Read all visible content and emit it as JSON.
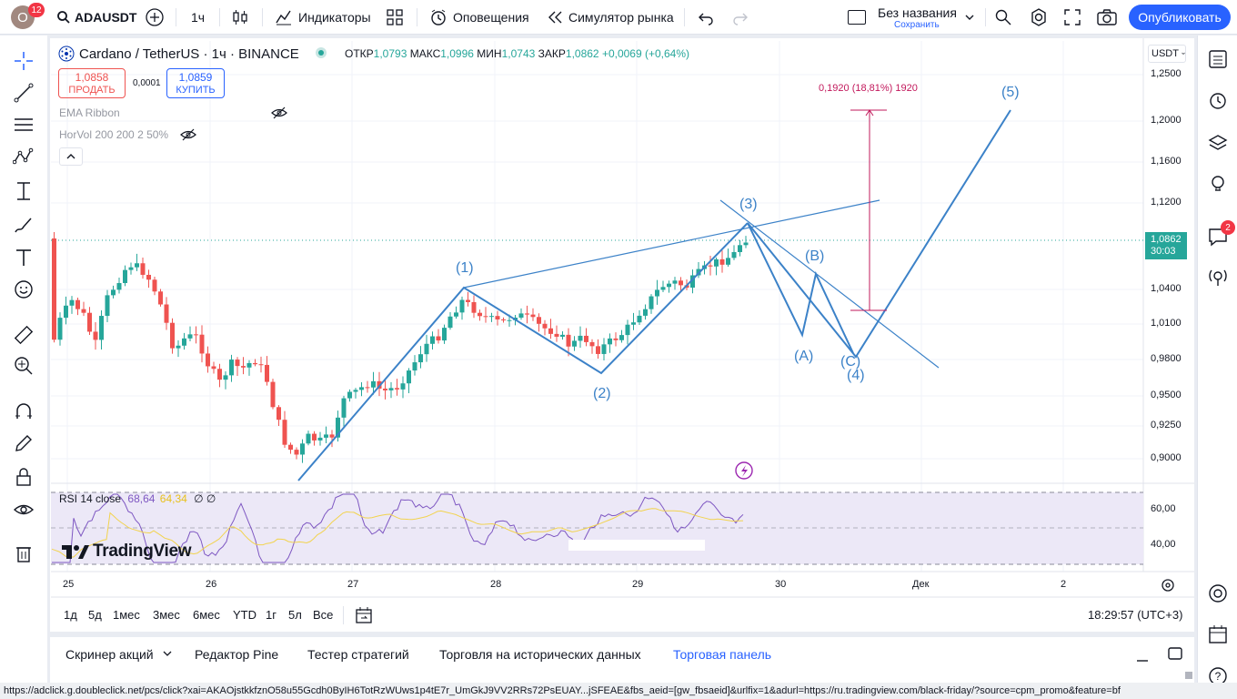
{
  "topbar": {
    "avatar_letter": "O",
    "notif_count": "12",
    "symbol": "ADAUSDT",
    "interval": "1ч",
    "indicators_label": "Индикаторы",
    "alerts_label": "Оповещения",
    "replay_label": "Симулятор рынка",
    "layout_name": "Без названия",
    "save_label": "Сохранить",
    "publish_label": "Опубликовать"
  },
  "legend": {
    "title": "Cardano / TetherUS · 1ч · BINANCE",
    "open_label": "ОТКР",
    "open": "1,0793",
    "high_label": "МАКС",
    "high": "1,0996",
    "low_label": "МИН",
    "low": "1,0743",
    "close_label": "ЗАКР",
    "close": "1,0862",
    "change": "+0,0069 (+0,64%)",
    "sell_price": "1,0858",
    "sell_label": "ПРОДАТЬ",
    "spread": "0,0001",
    "buy_price": "1,0859",
    "buy_label": "КУПИТЬ",
    "indicator1": "EMA Ribbon",
    "indicator2": "HorVol 200 200 2 50%"
  },
  "currency": "USDT",
  "price_axis": [
    "1,2500",
    "1,2000",
    "1,1600",
    "1,1200",
    "1,0400",
    "1,0100",
    "0,9800",
    "0,9500",
    "0,9250",
    "0,9000"
  ],
  "last_price": "1,0862",
  "countdown": "30:03",
  "measure_label": "0,1920 (18,81%) 1920",
  "wave_labels": [
    "(1)",
    "(2)",
    "(3)",
    "(A)",
    "(B)",
    "(C)",
    "(4)",
    "(5)"
  ],
  "rsi": {
    "label": "RSI 14 close",
    "value1": "68,64",
    "value2": "64,34",
    "level_high": "60,00",
    "level_low": "40,00",
    "color_rsi": "#7e57c2",
    "color_ma": "#f2d34e"
  },
  "watermark": "TradingView",
  "date_axis": [
    "25",
    "26",
    "27",
    "28",
    "29",
    "30",
    "Дек",
    "2"
  ],
  "ranges": [
    "1д",
    "5д",
    "1мес",
    "3мес",
    "6мес",
    "YTD",
    "1г",
    "5л",
    "Все"
  ],
  "clock": "18:29:57 (UTC+3)",
  "bottom_tabs": [
    "Скринер акций",
    "Редактор Pine",
    "Тестер стратегий",
    "Торговля на исторических данных",
    "Торговая панель"
  ],
  "right_notif": "2",
  "status_url": "https://adclick.g.doubleclick.net/pcs/click?xai=AKAOjstkkfznO58u55Gcdh0ByIH6TotRzWUws1p4tE7r_UmGkJ9VV2RRs72PsEUAY...jSFEAE&fbs_aeid=[gw_fbsaeid]&urlfix=1&adurl=https://ru.tradingview.com/black-friday/?source=cpm_promo&feature=bf",
  "colors": {
    "up": "#26a69a",
    "down": "#ef5350",
    "accent": "#2962ff",
    "drawing": "#3c82c8",
    "measure": "#c2185b"
  }
}
